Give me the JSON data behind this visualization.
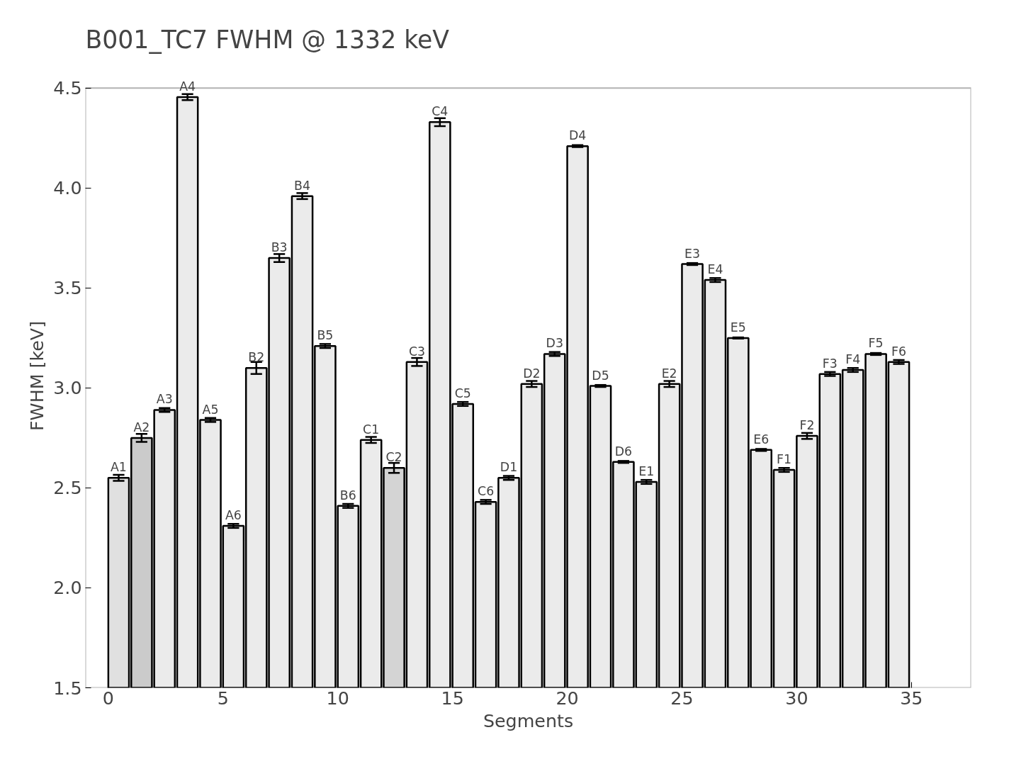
{
  "chart_data": {
    "type": "bar",
    "title": "B001_TC7 FWHM @ 1332 keV",
    "xlabel": "Segments",
    "ylabel": "FWHM [keV]",
    "x": [
      0.45,
      1.45,
      2.45,
      3.45,
      4.45,
      5.45,
      6.45,
      7.45,
      8.45,
      9.45,
      10.45,
      11.45,
      12.45,
      13.45,
      14.45,
      15.45,
      16.45,
      17.45,
      18.45,
      19.45,
      20.45,
      21.45,
      22.45,
      23.45,
      24.45,
      25.45,
      26.45,
      27.45,
      28.45,
      29.45,
      30.45,
      31.45,
      32.45,
      33.45,
      34.45
    ],
    "values": [
      2.55,
      2.75,
      2.89,
      4.455,
      2.84,
      2.31,
      3.1,
      3.65,
      3.96,
      3.21,
      2.41,
      2.74,
      2.6,
      3.13,
      4.33,
      2.92,
      2.43,
      2.55,
      3.02,
      3.17,
      4.21,
      3.01,
      2.63,
      2.53,
      3.02,
      3.62,
      3.54,
      3.25,
      2.69,
      2.59,
      2.76,
      3.07,
      3.09,
      3.17,
      3.13
    ],
    "errors": [
      0.015,
      0.02,
      0.01,
      0.015,
      0.01,
      0.01,
      0.03,
      0.02,
      0.015,
      0.01,
      0.01,
      0.015,
      0.025,
      0.02,
      0.02,
      0.01,
      0.01,
      0.01,
      0.015,
      0.01,
      0.005,
      0.005,
      0.005,
      0.01,
      0.015,
      0.005,
      0.01,
      0.003,
      0.005,
      0.01,
      0.015,
      0.01,
      0.01,
      0.005,
      0.01
    ],
    "colors": [
      "#e0e0e0",
      "#cbcbcb",
      "#ebebeb",
      "#ebebeb",
      "#ebebeb",
      "#ebebeb",
      "#ebebeb",
      "#ebebeb",
      "#ebebeb",
      "#ebebeb",
      "#ebebeb",
      "#ebebeb",
      "#d4d4d4",
      "#ebebeb",
      "#ebebeb",
      "#ebebeb",
      "#ebebeb",
      "#ebebeb",
      "#ebebeb",
      "#ebebeb",
      "#ebebeb",
      "#ebebeb",
      "#ebebeb",
      "#ebebeb",
      "#ebebeb",
      "#ebebeb",
      "#ebebeb",
      "#ebebeb",
      "#ebebeb",
      "#ebebeb",
      "#ebebeb",
      "#ebebeb",
      "#ebebeb",
      "#ebebeb",
      "#ebebeb"
    ],
    "annotations": [
      {
        "text": "A1",
        "x": 0.45,
        "y": 2.55
      },
      {
        "text": "A2",
        "x": 1.45,
        "y": 2.75
      },
      {
        "text": "A3",
        "x": 2.45,
        "y": 2.89
      },
      {
        "text": "A4",
        "x": 3.45,
        "y": 4.455
      },
      {
        "text": "A5",
        "x": 4.45,
        "y": 2.84
      },
      {
        "text": "A6",
        "x": 5.45,
        "y": 2.31
      },
      {
        "text": "B2",
        "x": 6.45,
        "y": 3.1
      },
      {
        "text": "B3",
        "x": 7.45,
        "y": 3.65
      },
      {
        "text": "B4",
        "x": 8.45,
        "y": 3.96
      },
      {
        "text": "B5",
        "x": 9.45,
        "y": 3.21
      },
      {
        "text": "B6",
        "x": 10.45,
        "y": 2.41
      },
      {
        "text": "C1",
        "x": 11.45,
        "y": 2.74
      },
      {
        "text": "C2",
        "x": 12.45,
        "y": 2.6
      },
      {
        "text": "C3",
        "x": 13.45,
        "y": 3.13
      },
      {
        "text": "C4",
        "x": 14.45,
        "y": 4.33
      },
      {
        "text": "C5",
        "x": 15.45,
        "y": 2.92
      },
      {
        "text": "C6",
        "x": 16.45,
        "y": 2.43
      },
      {
        "text": "D1",
        "x": 17.45,
        "y": 2.55
      },
      {
        "text": "D2",
        "x": 18.45,
        "y": 3.02
      },
      {
        "text": "D3",
        "x": 19.45,
        "y": 3.17
      },
      {
        "text": "D4",
        "x": 20.45,
        "y": 4.21
      },
      {
        "text": "D5",
        "x": 21.45,
        "y": 3.01
      },
      {
        "text": "D6",
        "x": 22.45,
        "y": 2.63
      },
      {
        "text": "E1",
        "x": 23.45,
        "y": 2.53
      },
      {
        "text": "E2",
        "x": 24.45,
        "y": 3.02
      },
      {
        "text": "E3",
        "x": 25.45,
        "y": 3.62
      },
      {
        "text": "E4",
        "x": 26.45,
        "y": 3.54
      },
      {
        "text": "E5",
        "x": 27.45,
        "y": 3.25
      },
      {
        "text": "E6",
        "x": 28.45,
        "y": 2.69
      },
      {
        "text": "F1",
        "x": 29.45,
        "y": 2.59
      },
      {
        "text": "F2",
        "x": 30.45,
        "y": 2.76
      },
      {
        "text": "F3",
        "x": 31.45,
        "y": 3.07
      },
      {
        "text": "F4",
        "x": 32.45,
        "y": 3.09
      },
      {
        "text": "F5",
        "x": 33.45,
        "y": 3.17
      },
      {
        "text": "F6",
        "x": 34.45,
        "y": 3.13
      }
    ],
    "xlim": [
      -1,
      37.6
    ],
    "ylim": [
      1.5,
      4.5
    ],
    "xticks": [
      0,
      5,
      10,
      15,
      20,
      25,
      30,
      35
    ],
    "yticks": [
      {
        "value": 1.5,
        "label": "1.5"
      },
      {
        "value": 2.0,
        "label": "2.0"
      },
      {
        "value": 2.5,
        "label": "2.5"
      },
      {
        "value": 3.0,
        "label": "3.0"
      },
      {
        "value": 3.5,
        "label": "3.5"
      },
      {
        "value": 4.0,
        "label": "4.0"
      },
      {
        "value": 4.5,
        "label": "4.5"
      }
    ],
    "grid": false
  }
}
